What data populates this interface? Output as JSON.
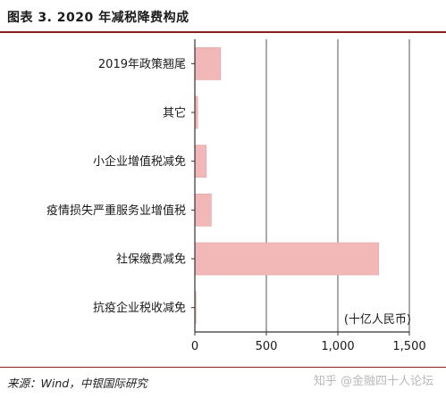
{
  "figure": {
    "title": "图表 3. 2020 年减税降费构成",
    "source": "来源：Wind，中银国际研究",
    "watermark": "知乎 @金融四十人论坛"
  },
  "colors": {
    "bar_fill": "#f2b8b8",
    "bar_stroke": "#e2a3a3",
    "rule": "#8a1f1f",
    "grid": "#555555",
    "axis": "#333333"
  },
  "chart_data": {
    "type": "bar",
    "orientation": "horizontal",
    "categories": [
      "2019年政策翘尾",
      "其它",
      "小企业增值税减免",
      "疫情损失严重服务业增值税",
      "社保缴费减免",
      "抗疫企业税收减免"
    ],
    "values": [
      180,
      20,
      80,
      115,
      1285,
      8
    ],
    "xlim": [
      0,
      1500
    ],
    "xticks": [
      0,
      500,
      1000,
      1500
    ],
    "xtick_labels": [
      "0",
      "500",
      "1,000",
      "1,500"
    ],
    "unit_label": "(十亿人民币)",
    "grid": "vertical"
  }
}
